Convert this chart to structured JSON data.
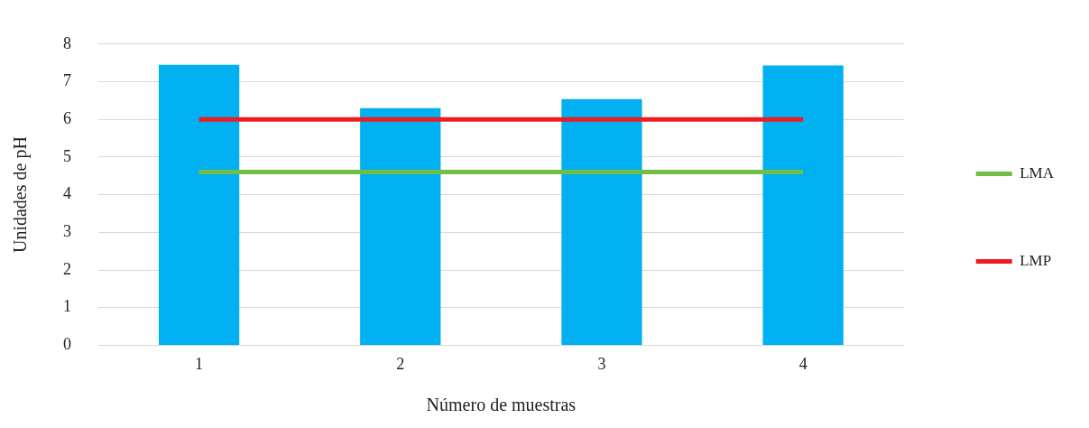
{
  "chart_data": {
    "type": "bar",
    "xlabel": "Número de muestras",
    "ylabel": "Unidades de pH",
    "categories": [
      "1",
      "2",
      "3",
      "4"
    ],
    "series": [
      {
        "color": "#00b0f0",
        "values": [
          7.45,
          6.3,
          6.54,
          7.43
        ]
      },
      {
        "type": "line",
        "name": "LMA",
        "color": "#70bf44",
        "values": [
          4.6,
          4.6,
          4.6,
          4.6
        ]
      },
      {
        "type": "line",
        "name": "LMP",
        "color": "#ed1c24",
        "values": [
          6.0,
          6.0,
          6.0,
          6.0
        ]
      }
    ],
    "ylim": [
      0,
      8
    ],
    "yticks": [
      0,
      1,
      2,
      3,
      4,
      5,
      6,
      7,
      8
    ],
    "grid": "y",
    "legend": "right",
    "marker": "none"
  }
}
